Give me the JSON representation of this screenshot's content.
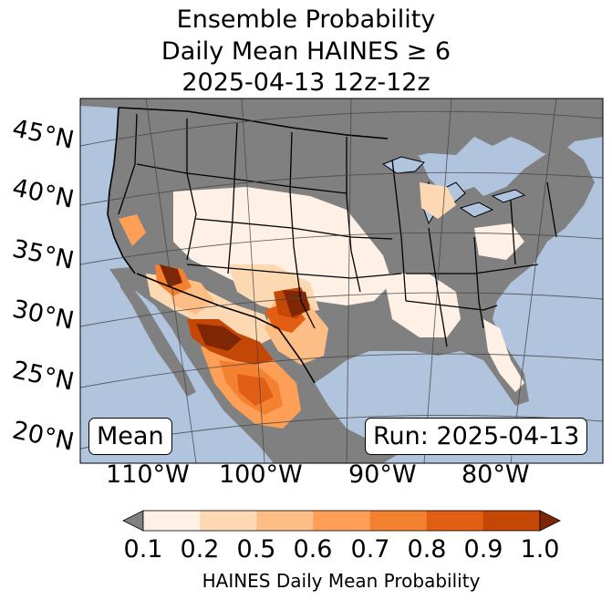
{
  "title": {
    "line1": "Ensemble Probability",
    "line2": "Daily Mean HAINES ≥ 6",
    "line3": "2025-04-13 12z-12z"
  },
  "map": {
    "region": "Contiguous United States",
    "lat_labels": [
      "45°N",
      "40°N",
      "35°N",
      "30°N",
      "25°N",
      "20°N"
    ],
    "lon_labels": [
      "110°W",
      "100°W",
      "90°W",
      "80°W"
    ],
    "mean_label": "Mean",
    "run_label": "Run: 2025-04-13",
    "colors": {
      "ocean": "#b0c4de",
      "below_threshold": "#808080",
      "grid": "#444444"
    }
  },
  "colorbar": {
    "ticks": [
      "0.1",
      "0.2",
      "0.5",
      "0.6",
      "0.7",
      "0.8",
      "0.9",
      "1.0"
    ],
    "label": "HAINES Daily Mean Probability",
    "colors": [
      "#808080",
      "#fef0e4",
      "#fdd9b3",
      "#fdbe85",
      "#fd9f56",
      "#f3812f",
      "#e25e15",
      "#c44705",
      "#7f2704"
    ]
  }
}
